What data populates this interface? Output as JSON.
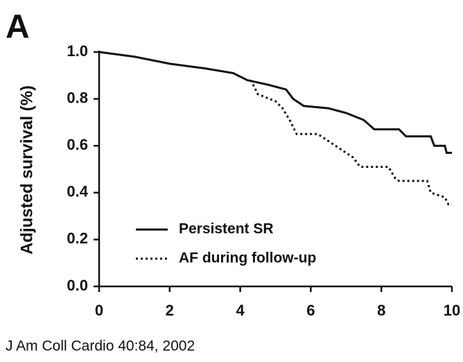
{
  "chart_data": {
    "type": "line",
    "panel_label": "A",
    "y_label": "Adjusted survival (%)",
    "source": "J Am Coll Cardio 40:84, 2002",
    "xlim": [
      0,
      10
    ],
    "xticks": [
      0,
      2,
      4,
      6,
      8,
      10
    ],
    "ylim": [
      0,
      1
    ],
    "yticks": [
      {
        "value": 0,
        "label": "0.0"
      },
      0.2,
      0.4,
      0.6,
      0.8,
      {
        "value": 1,
        "label": "1.0"
      }
    ],
    "series": [
      {
        "name": "Persistent SR",
        "color": "#111111",
        "line_style": "solid",
        "x": [
          0,
          1,
          2,
          3,
          3.8,
          4.2,
          4.8,
          5.3,
          5.5,
          5.8,
          6.5,
          7,
          7.5,
          7.8,
          8.5,
          8.7,
          9.4,
          9.5,
          9.8,
          9.85,
          10
        ],
        "values": [
          1.0,
          0.98,
          0.95,
          0.93,
          0.91,
          0.88,
          0.86,
          0.84,
          0.8,
          0.77,
          0.76,
          0.74,
          0.71,
          0.67,
          0.67,
          0.64,
          0.64,
          0.6,
          0.6,
          0.57,
          0.57
        ]
      },
      {
        "name": "AF during follow-up",
        "color": "#111111",
        "line_style": "dotted",
        "x": [
          4.3,
          4.5,
          5.0,
          5.2,
          5.4,
          5.6,
          6.2,
          6.5,
          6.9,
          7.2,
          7.4,
          8.2,
          8.4,
          8.5,
          9.3,
          9.4,
          9.8,
          9.9,
          10
        ],
        "values": [
          0.88,
          0.82,
          0.79,
          0.76,
          0.71,
          0.65,
          0.65,
          0.62,
          0.58,
          0.55,
          0.51,
          0.51,
          0.46,
          0.45,
          0.45,
          0.4,
          0.38,
          0.35,
          0.35
        ]
      }
    ],
    "legend_position": "lower left"
  }
}
